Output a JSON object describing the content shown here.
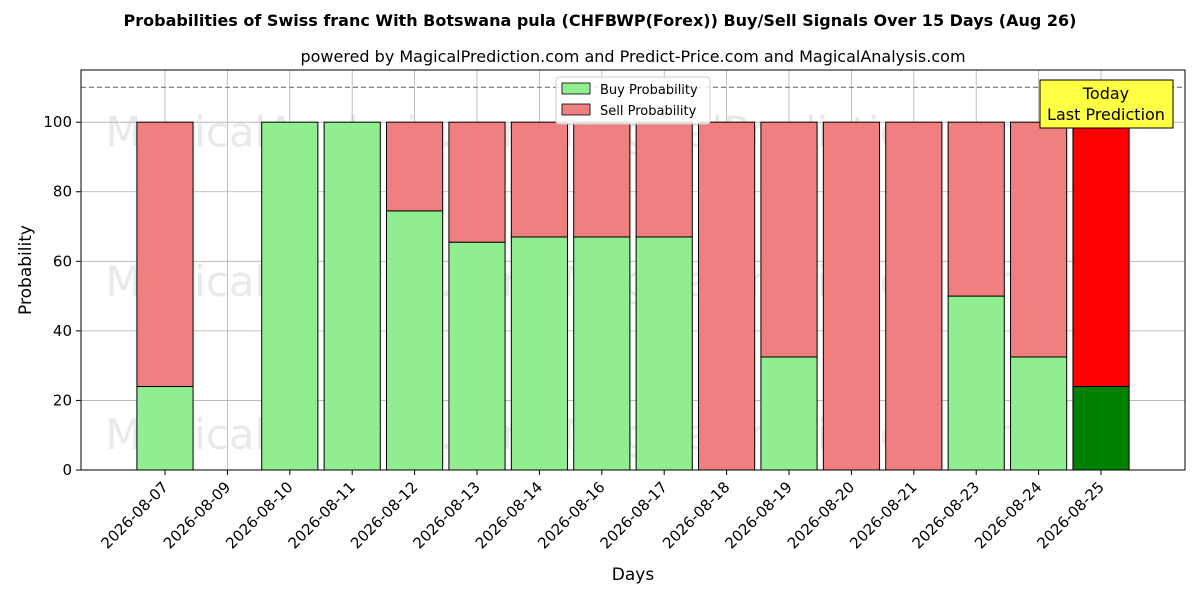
{
  "chart_data": {
    "type": "bar",
    "stacked": true,
    "title": "Probabilities of Swiss franc With Botswana pula (CHFBWP(Forex)) Buy/Sell Signals Over 15 Days (Aug 26)",
    "subtitle": "powered by MagicalPrediction.com and Predict-Price.com and MagicalAnalysis.com",
    "xlabel": "Days",
    "ylabel": "Probability",
    "ylim": [
      0,
      115
    ],
    "yticks": [
      0,
      20,
      40,
      60,
      80,
      100
    ],
    "reference_line": 110,
    "grid": true,
    "legend_position": "top-center",
    "categories": [
      "2026-08-07",
      "2026-08-09",
      "2026-08-10",
      "2026-08-11",
      "2026-08-12",
      "2026-08-13",
      "2026-08-14",
      "2026-08-16",
      "2026-08-17",
      "2026-08-18",
      "2026-08-19",
      "2026-08-20",
      "2026-08-21",
      "2026-08-23",
      "2026-08-24",
      "2026-08-25"
    ],
    "series": [
      {
        "name": "Buy Probability",
        "color": "#90ee90",
        "values": [
          24,
          0,
          100,
          100,
          74.5,
          65.5,
          67,
          67,
          67,
          0,
          32.5,
          0,
          0,
          50,
          32.5,
          24
        ]
      },
      {
        "name": "Sell Probability",
        "color": "#f08080",
        "values": [
          76,
          0,
          0,
          0,
          25.5,
          34.5,
          33,
          33,
          33,
          100,
          67.5,
          100,
          100,
          50,
          67.5,
          76
        ]
      }
    ],
    "highlight": {
      "index": 15,
      "buy_color": "#008000",
      "sell_color": "#ff0000"
    },
    "annotation": {
      "line1": "Today",
      "line2": "Last Prediction",
      "background": "#ffff44"
    },
    "watermarks": [
      "MagicalAnalysis.com",
      "MagicalPrediction.com"
    ]
  }
}
